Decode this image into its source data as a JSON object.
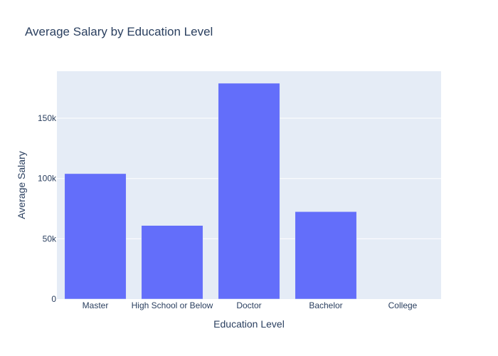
{
  "chart_data": {
    "type": "bar",
    "title": "Average Salary by Education Level",
    "xlabel": "Education Level",
    "ylabel": "Average Salary",
    "categories": [
      "Master",
      "High School or Below",
      "Doctor",
      "Bachelor",
      "College"
    ],
    "values": [
      104000,
      61000,
      179000,
      72500,
      0
    ],
    "ylim": [
      0,
      189000
    ],
    "yticks": [
      0,
      50000,
      100000,
      150000
    ],
    "ytick_labels": [
      "0",
      "50k",
      "100k",
      "150k"
    ],
    "grid": true,
    "legend": "none",
    "colors": {
      "bar": "#636efa",
      "plot_background": "#e5ecf6",
      "grid": "#ffffff",
      "text": "#2a3f5f"
    }
  }
}
